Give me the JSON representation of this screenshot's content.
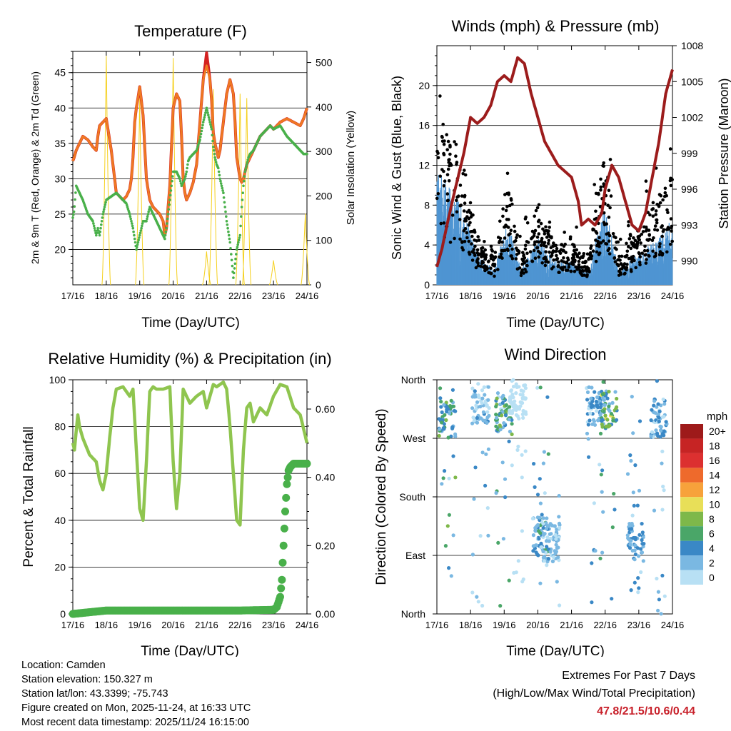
{
  "colors": {
    "temp_red": "#d42222",
    "temp_orange": "#ef7a22",
    "td_green": "#49b04a",
    "solar_yellow": "#f5d01e",
    "wind_blue": "#4f95d2",
    "gust_black": "#000000",
    "pressure_maroon": "#9c1c1c",
    "rh_green": "#8fc54f",
    "precip_green": "#49b04a",
    "extremes_red": "#c8202a"
  },
  "x_ticks": [
    "17/16",
    "18/16",
    "19/16",
    "20/16",
    "21/16",
    "22/16",
    "23/16",
    "24/16"
  ],
  "chart_data": [
    {
      "id": "temperature",
      "type": "line",
      "title": "Temperature (F)",
      "xlabel": "Time (Day/UTC)",
      "ylabel": "2m & 9m T (Red, Orange) & 2m Td (Green)",
      "y2label": "Solar Insolation (Yellow)",
      "ylim": [
        15,
        48
      ],
      "y2lim": [
        0,
        525
      ],
      "yticks": [
        20,
        25,
        30,
        35,
        40,
        45
      ],
      "y2ticks": [
        0,
        100,
        200,
        300,
        400,
        500
      ],
      "x": [
        0,
        0.04,
        0.1,
        0.2,
        0.3,
        0.45,
        0.6,
        0.7,
        0.75,
        0.8,
        0.9,
        1.0,
        1.15,
        1.3,
        1.5,
        1.6,
        1.7,
        1.75,
        1.8,
        1.85,
        1.9,
        2.0,
        2.1,
        2.2,
        2.3,
        2.4,
        2.5,
        2.6,
        2.7,
        2.75,
        2.8,
        2.9,
        3.0,
        3.1,
        3.2,
        3.25,
        3.3,
        3.35,
        3.4,
        3.45,
        3.5,
        3.6,
        3.7,
        3.8,
        3.9,
        4.0,
        4.1,
        4.15,
        4.2,
        4.25,
        4.3,
        4.35,
        4.4,
        4.5,
        4.6,
        4.7,
        4.8,
        4.85,
        4.9,
        5.0,
        5.05,
        5.1,
        5.15,
        5.2,
        5.25,
        5.3,
        5.4,
        5.5,
        5.6,
        5.7,
        5.8,
        5.9,
        6.0,
        6.2,
        6.4,
        6.6,
        6.8,
        6.9,
        7.0
      ],
      "series": [
        {
          "name": "2m T",
          "values": [
            32.5,
            33,
            34,
            35,
            36,
            35.5,
            34.5,
            34,
            36,
            37.5,
            38,
            38.5,
            34,
            28,
            27,
            27.5,
            28.5,
            30,
            33,
            38,
            40,
            43,
            39,
            30,
            27,
            26,
            25.5,
            25,
            24,
            22,
            23,
            29,
            40,
            42,
            41,
            36,
            30,
            28,
            27,
            27.5,
            28,
            29.5,
            32,
            38,
            44,
            46,
            44,
            41,
            36.5,
            35,
            34,
            33,
            34,
            38,
            42,
            44,
            42,
            38,
            33,
            30,
            29.5,
            30,
            31,
            32,
            32.5,
            33,
            34,
            35,
            36,
            36.5,
            37,
            37.5,
            37,
            38,
            38.5,
            38,
            37.5,
            38.5,
            40
          ]
        },
        {
          "name": "9m T",
          "values": [
            32.5,
            33,
            34,
            35,
            36,
            35.5,
            34.5,
            34,
            36,
            37.5,
            38,
            38.5,
            34,
            28,
            27,
            27.5,
            28.5,
            30,
            33,
            38,
            40,
            43,
            39,
            30,
            27,
            26,
            25.5,
            25,
            24,
            22,
            23,
            29,
            40,
            42,
            41,
            36,
            30,
            28,
            27,
            27.5,
            28,
            29.5,
            32,
            38,
            44,
            47.8,
            44,
            41,
            36.5,
            35,
            34,
            33,
            34,
            38,
            42,
            44,
            42,
            38,
            33,
            30,
            29.5,
            30,
            31,
            32,
            32.5,
            33,
            34,
            35,
            36,
            36.5,
            37,
            37.5,
            37,
            38,
            38.5,
            38,
            37.5,
            38.5,
            40
          ]
        },
        {
          "name": "2m Td",
          "values": [
            24.5,
            25.5,
            29,
            28,
            27,
            25,
            24,
            22,
            23,
            22,
            25,
            27,
            27.5,
            28,
            27,
            26.5,
            25,
            24,
            23,
            21.5,
            20,
            22,
            24,
            24,
            26,
            25,
            24,
            23,
            22,
            21.5,
            23,
            27,
            31,
            31,
            30,
            29,
            29.5,
            30,
            31,
            32.5,
            33,
            33.5,
            34,
            35.5,
            38,
            40,
            38,
            37,
            34.5,
            33,
            32,
            31.5,
            30,
            28,
            24,
            21,
            16,
            18,
            20,
            22,
            26,
            29,
            31,
            32,
            33,
            33.5,
            34,
            35,
            36,
            36.5,
            37,
            37.5,
            37,
            37.5,
            36,
            35,
            34,
            33.5,
            33.5
          ]
        }
      ],
      "solar": {
        "name": "Solar Insolation",
        "peaks": [
          {
            "day": 1.0,
            "value": 515
          },
          {
            "day": 2.0,
            "value": 420
          },
          {
            "day": 3.0,
            "value": 510
          },
          {
            "day": 4.0,
            "value": 75
          },
          {
            "day": 4.2,
            "value": 440
          },
          {
            "day": 5.0,
            "value": 430
          },
          {
            "day": 5.2,
            "value": 420
          },
          {
            "day": 6.0,
            "value": 55
          },
          {
            "day": 6.95,
            "value": 160
          }
        ]
      }
    },
    {
      "id": "winds",
      "type": "scatter+line",
      "title": "Winds (mph) & Pressure (mb)",
      "xlabel": "Time (Day/UTC)",
      "ylabel": "Sonic Wind & Gust (Blue, Black)",
      "y2label": "Station Pressure (Maroon)",
      "ylim": [
        0,
        24
      ],
      "y2lim": [
        988,
        1008
      ],
      "yticks": [
        0,
        4,
        8,
        12,
        16,
        20
      ],
      "y2ticks": [
        990,
        993,
        996,
        999,
        1002,
        1005,
        1008
      ],
      "wind_envelope": [
        {
          "day": 0.1,
          "mean": 7
        },
        {
          "day": 0.5,
          "mean": 6
        },
        {
          "day": 0.9,
          "mean": 4
        },
        {
          "day": 1.2,
          "mean": 2
        },
        {
          "day": 1.7,
          "mean": 1
        },
        {
          "day": 2.1,
          "mean": 4
        },
        {
          "day": 2.5,
          "mean": 1
        },
        {
          "day": 3.0,
          "mean": 3
        },
        {
          "day": 3.5,
          "mean": 1.5
        },
        {
          "day": 4.0,
          "mean": 1.5
        },
        {
          "day": 4.5,
          "mean": 1
        },
        {
          "day": 5.0,
          "mean": 5
        },
        {
          "day": 5.4,
          "mean": 1
        },
        {
          "day": 6.0,
          "mean": 2
        },
        {
          "day": 6.6,
          "mean": 3
        },
        {
          "day": 6.9,
          "mean": 4
        }
      ],
      "gust_envelope": [
        {
          "day": 0.1,
          "mean": 12
        },
        {
          "day": 0.5,
          "mean": 10
        },
        {
          "day": 0.9,
          "mean": 8
        },
        {
          "day": 1.2,
          "mean": 3
        },
        {
          "day": 1.7,
          "mean": 2
        },
        {
          "day": 2.1,
          "mean": 8
        },
        {
          "day": 2.5,
          "mean": 2
        },
        {
          "day": 3.0,
          "mean": 6
        },
        {
          "day": 3.5,
          "mean": 3
        },
        {
          "day": 4.0,
          "mean": 3
        },
        {
          "day": 4.5,
          "mean": 2
        },
        {
          "day": 5.0,
          "mean": 10
        },
        {
          "day": 5.4,
          "mean": 2
        },
        {
          "day": 6.0,
          "mean": 4
        },
        {
          "day": 6.6,
          "mean": 7
        },
        {
          "day": 6.9,
          "mean": 8
        }
      ],
      "pressure": {
        "x": [
          0,
          0.15,
          0.3,
          0.5,
          0.8,
          1.0,
          1.2,
          1.4,
          1.6,
          1.8,
          2.0,
          2.2,
          2.4,
          2.6,
          2.8,
          3.0,
          3.2,
          3.4,
          3.6,
          3.8,
          4.0,
          4.2,
          4.3,
          4.5,
          4.7,
          4.9,
          5.0,
          5.2,
          5.4,
          5.6,
          5.8,
          6.0,
          6.2,
          6.4,
          6.6,
          6.8,
          7.0
        ],
        "values": [
          989.5,
          991,
          993,
          995.5,
          999,
          1002,
          1001.5,
          1002,
          1003,
          1005,
          1005.5,
          1005,
          1007,
          1006.5,
          1004,
          1002,
          1000,
          999,
          998,
          997.5,
          997,
          995,
          993,
          993.5,
          993,
          994,
          996,
          998,
          997,
          995,
          993,
          992.5,
          994,
          997,
          1000,
          1004,
          1006
        ]
      }
    },
    {
      "id": "humidity",
      "type": "line",
      "title": "Relative Humidity (%) & Precipitation (in)",
      "xlabel": "Time (Day/UTC)",
      "ylabel": "Percent & Total Rainfall",
      "ylim": [
        0,
        100
      ],
      "y2lim": [
        0,
        0.6857
      ],
      "yticks": [
        0,
        20,
        40,
        60,
        80,
        100
      ],
      "y2ticks": [
        "0.00",
        "0.20",
        "0.40",
        "0.60"
      ],
      "rh": {
        "x": [
          0,
          0.05,
          0.1,
          0.15,
          0.2,
          0.3,
          0.5,
          0.7,
          0.8,
          0.9,
          1.0,
          1.1,
          1.2,
          1.3,
          1.5,
          1.6,
          1.7,
          1.8,
          1.9,
          2.0,
          2.1,
          2.2,
          2.3,
          2.4,
          2.5,
          2.7,
          2.9,
          3.0,
          3.1,
          3.2,
          3.3,
          3.5,
          3.7,
          3.9,
          4.0,
          4.2,
          4.3,
          4.5,
          4.6,
          4.7,
          4.8,
          4.9,
          5.0,
          5.1,
          5.2,
          5.3,
          5.4,
          5.6,
          5.8,
          6.0,
          6.2,
          6.4,
          6.6,
          6.8,
          7.0
        ],
        "values": [
          73,
          70,
          78,
          85,
          80,
          75,
          68,
          65,
          57,
          53,
          60,
          75,
          88,
          96,
          97,
          95,
          93,
          96,
          70,
          45,
          40,
          65,
          95,
          97,
          96,
          96,
          97,
          65,
          45,
          60,
          96,
          90,
          93,
          95,
          88,
          98,
          97,
          99,
          96,
          80,
          60,
          40,
          38,
          70,
          88,
          90,
          82,
          88,
          85,
          93,
          98,
          97,
          88,
          85,
          73
        ]
      },
      "precip": {
        "x": [
          0,
          0.5,
          1.0,
          2.0,
          3.0,
          4.0,
          5.0,
          6.0,
          6.1,
          6.2,
          6.25,
          6.3,
          6.35,
          6.4,
          6.45,
          6.5,
          6.6,
          6.8,
          7.0
        ],
        "values": [
          0.0,
          0.005,
          0.01,
          0.01,
          0.01,
          0.01,
          0.01,
          0.012,
          0.02,
          0.05,
          0.1,
          0.2,
          0.3,
          0.38,
          0.42,
          0.43,
          0.44,
          0.44,
          0.44
        ]
      }
    },
    {
      "id": "direction",
      "type": "scatter",
      "title": "Wind Direction",
      "xlabel": "Time (Day/UTC)",
      "ylabel": "Direction (Colored By Speed)",
      "ytick_labels": [
        "North",
        "East",
        "South",
        "West",
        "North"
      ],
      "clusters": [
        {
          "day": 0.3,
          "dir": 300,
          "speed": 6
        },
        {
          "day": 1.3,
          "dir": 320,
          "speed": 3
        },
        {
          "day": 2.0,
          "dir": 310,
          "speed": 6
        },
        {
          "day": 2.4,
          "dir": 330,
          "speed": 1
        },
        {
          "day": 3.1,
          "dir": 120,
          "speed": 5
        },
        {
          "day": 3.4,
          "dir": 110,
          "speed": 3
        },
        {
          "day": 4.7,
          "dir": 320,
          "speed": 4
        },
        {
          "day": 5.1,
          "dir": 315,
          "speed": 7
        },
        {
          "day": 5.9,
          "dir": 110,
          "speed": 4
        },
        {
          "day": 6.6,
          "dir": 300,
          "speed": 4
        }
      ],
      "colorbar": {
        "unit": "mph",
        "labels": [
          "20+",
          "18",
          "16",
          "14",
          "12",
          "10",
          "8",
          "6",
          "4",
          "2",
          "0"
        ],
        "colors": [
          "#9e1a1a",
          "#c62424",
          "#dc3030",
          "#ee6a2c",
          "#f7a23b",
          "#e8df58",
          "#7eb84a",
          "#4aa668",
          "#3a88c6",
          "#7ab8e2",
          "#b8e0f4"
        ]
      }
    }
  ],
  "footer": {
    "location": "Location: Camden",
    "elevation": "Station elevation: 150.327 m",
    "latlon": "Station lat/lon: 43.3399; -75.743",
    "created": "Figure created on Mon, 2025-11-24, at 16:33 UTC",
    "recent": "Most recent data timestamp: 2025/11/24 16:15:00",
    "extremes_title": "Extremes For Past 7 Days",
    "extremes_subtitle": "(High/Low/Max Wind/Total Precipitation)",
    "extremes_values": "47.8/21.5/10.6/0.44"
  }
}
